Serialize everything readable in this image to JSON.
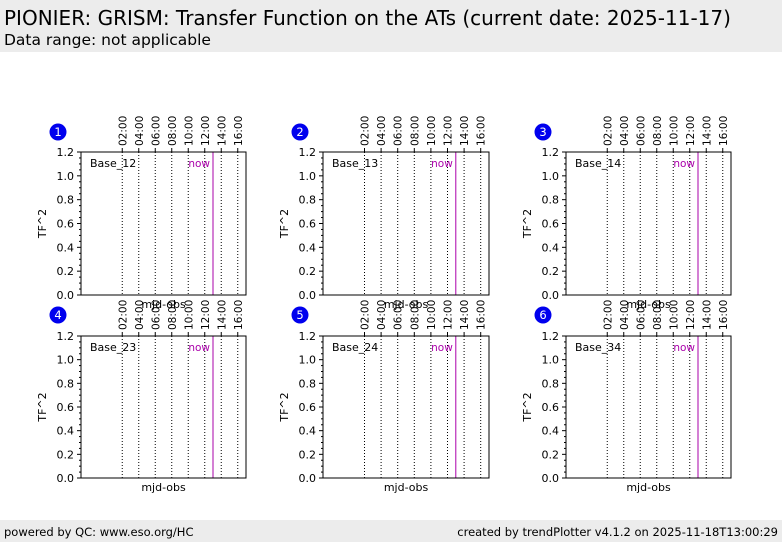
{
  "header": {
    "title": "PIONIER: GRISM: Transfer Function on the ATs (current date: 2025-11-17)",
    "subtitle": "Data range: not applicable"
  },
  "footer": {
    "left": "powered by QC: www.eso.org/HC",
    "right": "created by trendPlotter v4.1.2 on 2025-11-18T13:00:29"
  },
  "colors": {
    "header_bg": "#ececec",
    "badge": "#0000ee",
    "now_line": "#aa00aa",
    "grid": "#000000"
  },
  "chart_data": {
    "type": "line",
    "xlabel": "mjd-obs",
    "ylabel": "TF^2",
    "ylim": [
      0,
      1.2
    ],
    "y_ticks": [
      "0.0",
      "0.2",
      "0.4",
      "0.6",
      "0.8",
      "1.0",
      "1.2"
    ],
    "x_range_hours": [
      -3.0,
      17.0
    ],
    "time_ticks": [
      {
        "label": "02:00",
        "hour": 2
      },
      {
        "label": "04:00",
        "hour": 4
      },
      {
        "label": "06:00",
        "hour": 6
      },
      {
        "label": "08:00",
        "hour": 8
      },
      {
        "label": "10:00",
        "hour": 10
      },
      {
        "label": "12:00",
        "hour": 12
      },
      {
        "label": "14:00",
        "hour": 14
      },
      {
        "label": "16:00",
        "hour": 16
      }
    ],
    "now": {
      "label": "now",
      "hour": 13.0
    },
    "grid": "vertical dotted at time ticks",
    "panels": [
      {
        "number": "1",
        "name": "Base_12",
        "points": []
      },
      {
        "number": "2",
        "name": "Base_13",
        "points": []
      },
      {
        "number": "3",
        "name": "Base_14",
        "points": []
      },
      {
        "number": "4",
        "name": "Base_23",
        "points": []
      },
      {
        "number": "5",
        "name": "Base_24",
        "points": []
      },
      {
        "number": "6",
        "name": "Base_34",
        "points": []
      }
    ]
  }
}
